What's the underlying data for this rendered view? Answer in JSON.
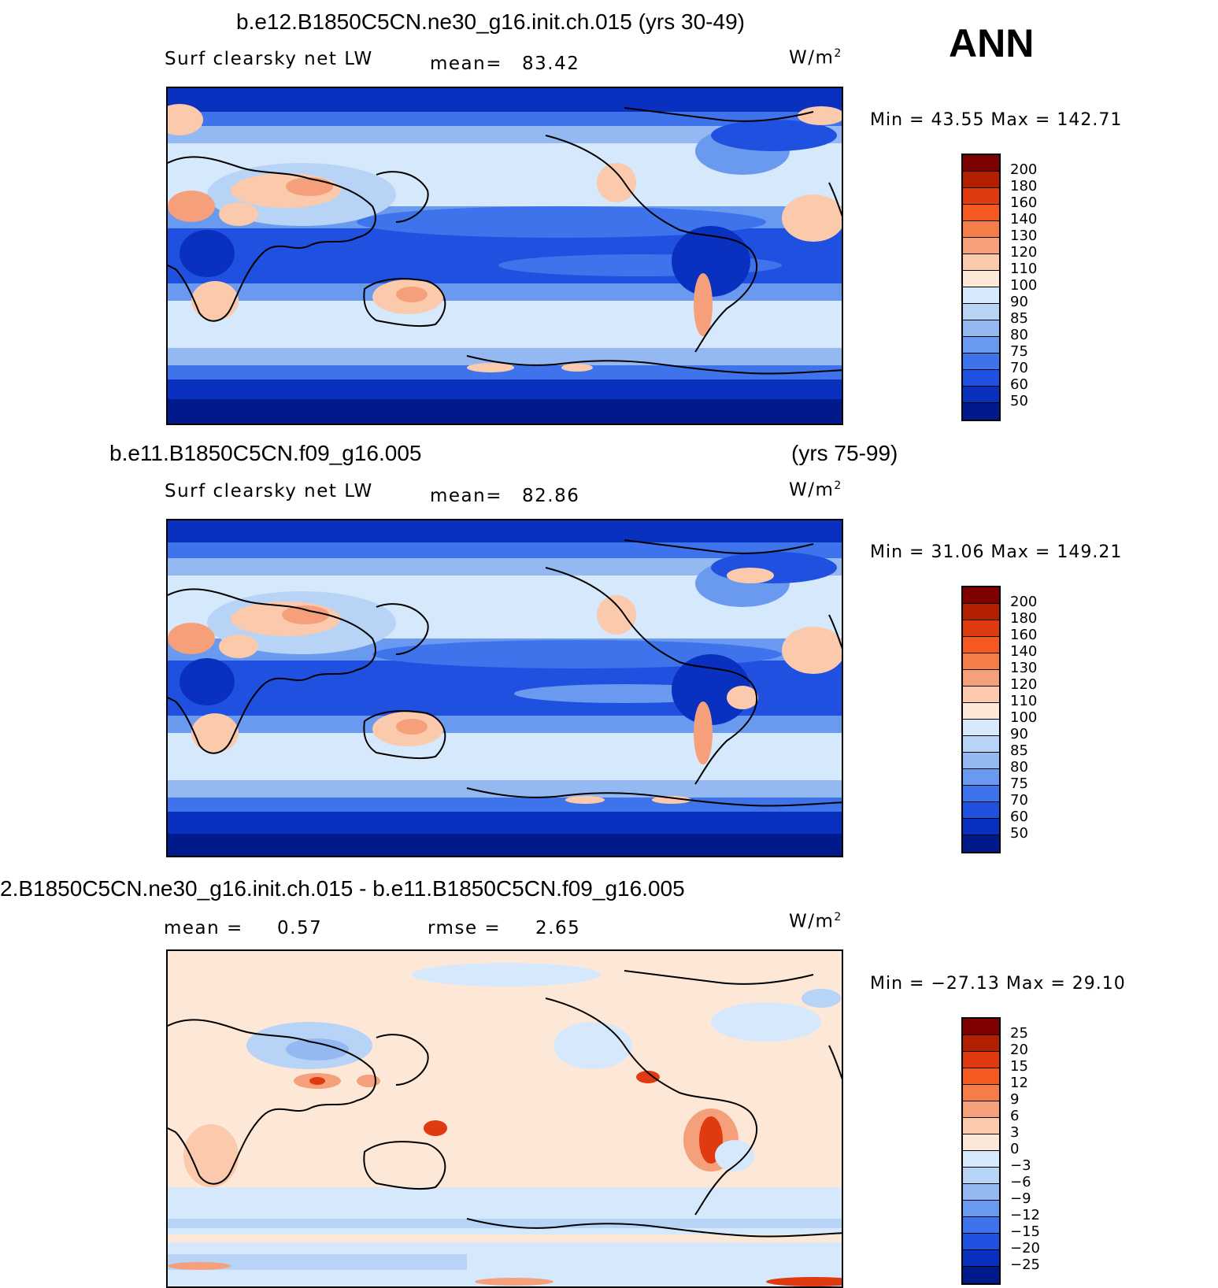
{
  "figure": {
    "season": "ANN"
  },
  "panels": [
    {
      "title": "b.e12.B1850C5CN.ne30_g16.init.ch.015 (yrs 30-49)",
      "variable": "Surf clearsky net LW",
      "mean_label": "mean=",
      "mean_value": "83.42",
      "unit": "W/m",
      "unit_sup": "2",
      "minmax": "Min =   43.55 Max =  142.71",
      "colorbar_labels": [
        "200",
        "180",
        "160",
        "140",
        "130",
        "120",
        "110",
        "100",
        "90",
        "85",
        "80",
        "75",
        "70",
        "60",
        "50"
      ]
    },
    {
      "title_left": "b.e11.B1850C5CN.f09_g16.005",
      "title_right": "(yrs 75-99)",
      "variable": "Surf clearsky net LW",
      "mean_label": "mean=",
      "mean_value": "82.86",
      "unit": "W/m",
      "unit_sup": "2",
      "minmax": "Min =   31.06 Max =  149.21",
      "colorbar_labels": [
        "200",
        "180",
        "160",
        "140",
        "130",
        "120",
        "110",
        "100",
        "90",
        "85",
        "80",
        "75",
        "70",
        "60",
        "50"
      ]
    },
    {
      "title": "2.B1850C5CN.ne30_g16.init.ch.015 - b.e11.B1850C5CN.f09_g16.005",
      "mean_label": "mean =",
      "mean_value": "0.57",
      "rmse_label": "rmse =",
      "rmse_value": "2.65",
      "unit": "W/m",
      "unit_sup": "2",
      "minmax": "Min = −27.13 Max =   29.10",
      "colorbar_labels": [
        "25",
        "20",
        "15",
        "12",
        "9",
        "6",
        "3",
        "0",
        "−3",
        "−6",
        "−9",
        "−12",
        "−15",
        "−20",
        "−25"
      ]
    }
  ],
  "colors": {
    "abs_scale": [
      "#7f0000",
      "#b22000",
      "#e03a10",
      "#f5591f",
      "#f57d4a",
      "#f5a07a",
      "#fbc9ab",
      "#fde8d8",
      "#d6e8fb",
      "#b7d3f6",
      "#93b8f2",
      "#6a99f0",
      "#3f73ec",
      "#2050e0",
      "#0a30c0",
      "#001a8c"
    ],
    "diff_scale": [
      "#7f0000",
      "#b22000",
      "#e03a10",
      "#f5591f",
      "#f57d4a",
      "#f5a07a",
      "#fbc9ab",
      "#fde8d8",
      "#d6e8fb",
      "#b7d3f6",
      "#93b8f2",
      "#6a99f0",
      "#3f73ec",
      "#2050e0",
      "#0a30c0",
      "#001a8c"
    ]
  }
}
